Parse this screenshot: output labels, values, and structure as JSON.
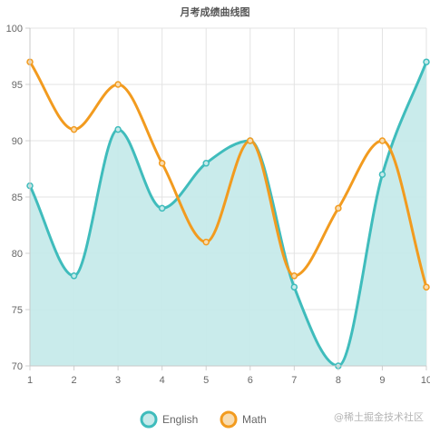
{
  "chart_data": {
    "type": "line",
    "title": "月考成绩曲线图",
    "x": [
      1,
      2,
      3,
      4,
      5,
      6,
      7,
      8,
      9,
      10
    ],
    "ylim": [
      70,
      100
    ],
    "yticks": [
      70,
      75,
      80,
      85,
      90,
      95,
      100
    ],
    "grid": true,
    "legend_position": "bottom",
    "series": [
      {
        "name": "English",
        "values": [
          86,
          78,
          91,
          84,
          88,
          90,
          77,
          70,
          87,
          97
        ],
        "color": "#3fbcbc",
        "fill": "#c6eaea",
        "filled": true
      },
      {
        "name": "Math",
        "values": [
          97,
          91,
          95,
          88,
          81,
          90,
          78,
          84,
          90,
          77
        ],
        "color": "#f29b1f",
        "filled": false
      }
    ]
  },
  "watermark": "@稀土掘金技术社区"
}
